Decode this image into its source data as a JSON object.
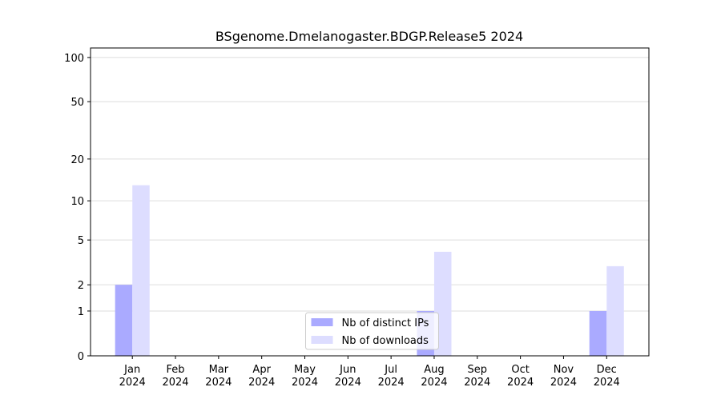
{
  "chart_data": {
    "type": "bar",
    "title": "BSgenome.Dmelanogaster.BDGP.Release5 2024",
    "categories": [
      "Jan 2024",
      "Feb 2024",
      "Mar 2024",
      "Apr 2024",
      "May 2024",
      "Jun 2024",
      "Jul 2024",
      "Aug 2024",
      "Sep 2024",
      "Oct 2024",
      "Nov 2024",
      "Dec 2024"
    ],
    "series": [
      {
        "name": "Nb of distinct IPs",
        "color": "#aaaaff",
        "values": [
          2,
          0,
          0,
          0,
          0,
          0,
          0,
          1,
          0,
          0,
          0,
          1
        ]
      },
      {
        "name": "Nb of downloads",
        "color": "#ddddff",
        "values": [
          13,
          0,
          0,
          0,
          0,
          0,
          0,
          4,
          0,
          0,
          0,
          3
        ]
      }
    ],
    "yscale": "log1p",
    "ylim": [
      0,
      116
    ],
    "yticks": [
      0,
      1,
      2,
      5,
      10,
      20,
      50,
      100
    ],
    "grid": true,
    "legend": "lower center"
  }
}
